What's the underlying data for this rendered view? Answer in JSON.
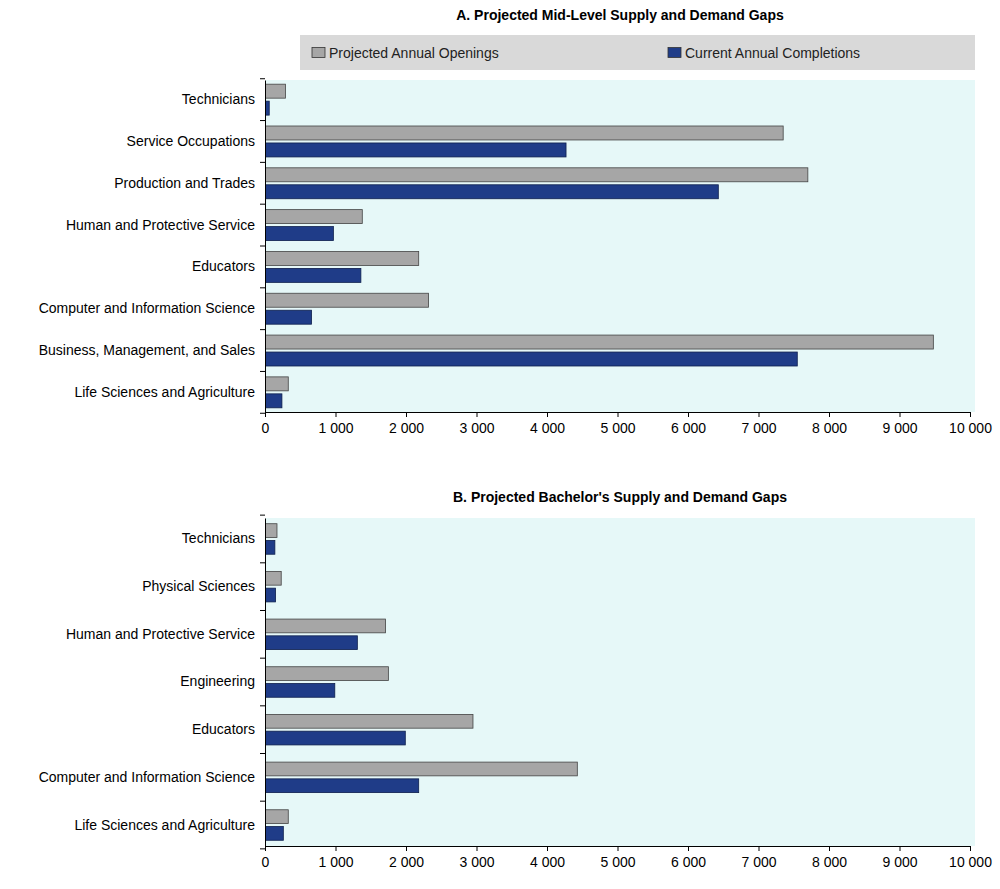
{
  "chart_data": [
    {
      "type": "bar",
      "orientation": "horizontal",
      "title": "A. Projected Mid-Level Supply and Demand Gaps",
      "legend": "top",
      "categories": [
        "Technicians",
        "Service Occupations",
        "Production and Trades",
        "Human and Protective Service",
        "Educators",
        "Computer and Information Science",
        "Business, Management, and Sales",
        "Life Sciences and Agriculture"
      ],
      "series": [
        {
          "name": "Projected Annual Openings",
          "color": "#a6a6a6",
          "values": [
            290,
            7350,
            7700,
            1380,
            2180,
            2320,
            9480,
            330
          ]
        },
        {
          "name": "Current Annual Completions",
          "color": "#1f3c88",
          "values": [
            60,
            4270,
            6430,
            970,
            1360,
            660,
            7550,
            240
          ]
        }
      ],
      "xlim": [
        0,
        10000
      ],
      "xticks": [
        0,
        {
          "value": 1000,
          "label": "1 000"
        },
        {
          "value": 2000,
          "label": "2 000"
        },
        {
          "value": 3000,
          "label": "3 000"
        },
        {
          "value": 4000,
          "label": "4 000"
        },
        {
          "value": 5000,
          "label": "5 000"
        },
        {
          "value": 6000,
          "label": "6 000"
        },
        {
          "value": 7000,
          "label": "7 000"
        },
        {
          "value": 8000,
          "label": "8 000"
        },
        {
          "value": 9000,
          "label": "9 000"
        },
        {
          "value": 10000,
          "label": "10 000"
        }
      ]
    },
    {
      "type": "bar",
      "orientation": "horizontal",
      "title": "B. Projected Bachelor's Supply and Demand Gaps",
      "categories": [
        "Technicians",
        "Physical Sciences",
        "Human and Protective Service",
        "Engineering",
        "Educators",
        "Computer and Information Science",
        "Life Sciences and Agriculture"
      ],
      "series": [
        {
          "color": "#a6a6a6",
          "values": [
            170,
            230,
            1710,
            1750,
            2950,
            4430,
            330
          ]
        },
        {
          "color": "#1f3c88",
          "values": [
            140,
            150,
            1310,
            990,
            1990,
            2180,
            260
          ]
        }
      ],
      "xlim": [
        0,
        10000
      ],
      "xticks": [
        0,
        {
          "value": 1000,
          "label": "1 000"
        },
        {
          "value": 2000,
          "label": "2 000"
        },
        {
          "value": 3000,
          "label": "3 000"
        },
        {
          "value": 4000,
          "label": "4 000"
        },
        {
          "value": 5000,
          "label": "5 000"
        },
        {
          "value": 6000,
          "label": "6 000"
        },
        {
          "value": 7000,
          "label": "7 000"
        },
        {
          "value": 8000,
          "label": "8 000"
        },
        {
          "value": 9000,
          "label": "9 000"
        },
        {
          "value": 10000,
          "label": "10 000"
        }
      ]
    }
  ]
}
